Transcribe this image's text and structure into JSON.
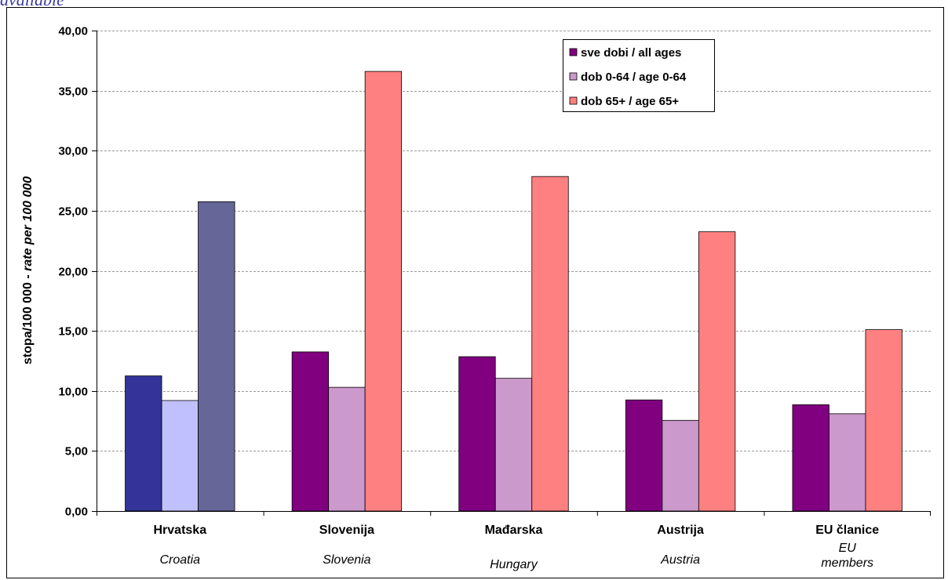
{
  "top_caption": "available",
  "chart_data": {
    "type": "bar",
    "ylabel_main": "stopa/100 000 - ",
    "ylabel_italic": "rate per 100 000",
    "ylim": [
      0,
      40
    ],
    "y_ticks": [
      "0,00",
      "5,00",
      "10,00",
      "15,00",
      "20,00",
      "25,00",
      "30,00",
      "35,00",
      "40,00"
    ],
    "grid": true,
    "legend_position": "top-right",
    "categories": [
      {
        "label": "Hrvatska",
        "sublabel": [
          "Croatia"
        ]
      },
      {
        "label": "Slovenija",
        "sublabel": [
          "Slovenia"
        ]
      },
      {
        "label": "Mađarska",
        "sublabel": [
          "Hungary"
        ]
      },
      {
        "label": "Austrija",
        "sublabel": [
          "Austria"
        ]
      },
      {
        "label": "EU članice",
        "sublabel": [
          "EU",
          "members"
        ]
      }
    ],
    "series": [
      {
        "name": "sve dobi / all ages",
        "color": "#800080",
        "highlight_color": "#333399",
        "values": [
          11.25,
          13.25,
          12.85,
          9.25,
          8.85
        ]
      },
      {
        "name": "dob 0-64 / age 0-64",
        "color": "#cc99cc",
        "highlight_color": "#c0c0ff",
        "values": [
          9.2,
          10.3,
          11.05,
          7.55,
          8.1
        ]
      },
      {
        "name": "dob 65+ / age 65+",
        "color": "#ff8080",
        "highlight_color": "#666699",
        "values": [
          25.75,
          36.6,
          27.85,
          23.25,
          15.1
        ]
      }
    ],
    "highlight_category_index": 0
  }
}
